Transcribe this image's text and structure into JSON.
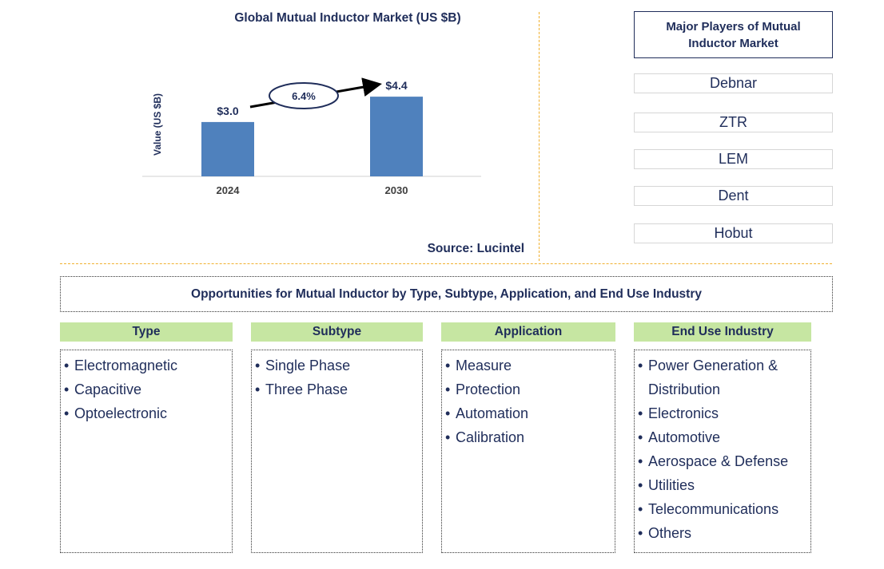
{
  "chart_data": {
    "type": "bar",
    "title": "Global Mutual Inductor Market (US $B)",
    "y_label": "Value (US $B)",
    "categories": [
      "2024",
      "2030"
    ],
    "values": [
      3.0,
      4.4
    ],
    "value_labels": [
      "$3.0",
      "$4.4"
    ],
    "color": "#4f81bd",
    "ylim": [
      0,
      5
    ],
    "annotation": "6.4%",
    "source": "Source: Lucintel"
  },
  "players": {
    "title": "Major Players of Mutual Inductor Market",
    "items": [
      "Debnar",
      "ZTR",
      "LEM",
      "Dent",
      "Hobut"
    ]
  },
  "opportunities": {
    "title": "Opportunities for Mutual Inductor by Type, Subtype, Application, and End Use Industry",
    "columns": [
      {
        "heading": "Type",
        "items": [
          "Electromagnetic",
          "Capacitive",
          "Optoelectronic"
        ]
      },
      {
        "heading": "Subtype",
        "items": [
          "Single Phase",
          "Three Phase"
        ]
      },
      {
        "heading": "Application",
        "items": [
          "Measure",
          "Protection",
          "Automation",
          "Calibration"
        ]
      },
      {
        "heading": "End Use Industry",
        "items": [
          "Power Generation & Distribution",
          "Electronics",
          "Automotive",
          "Aerospace & Defense",
          "Utilities",
          "Telecommunications",
          "Others"
        ]
      }
    ]
  }
}
